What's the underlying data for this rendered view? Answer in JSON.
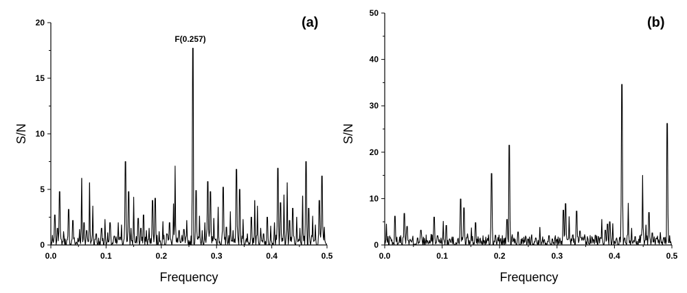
{
  "chart_data": [
    {
      "panel": "(a)",
      "type": "line",
      "xlabel": "Frequency",
      "ylabel": "S/N",
      "xlim": [
        0.0,
        0.5
      ],
      "ylim": [
        0,
        20
      ],
      "xticks": [
        "0.0",
        "0.1",
        "0.2",
        "0.3",
        "0.4",
        "0.5"
      ],
      "yticks": [
        "0",
        "5",
        "10",
        "15",
        "20"
      ],
      "annotations": [
        {
          "text": "F(0.257)",
          "x": 0.257,
          "y": 17.7
        }
      ],
      "peaks": [
        [
          0.007,
          2.7
        ],
        [
          0.012,
          1.5
        ],
        [
          0.016,
          4.8
        ],
        [
          0.023,
          1.2
        ],
        [
          0.032,
          3.2
        ],
        [
          0.04,
          2.2
        ],
        [
          0.052,
          1.4
        ],
        [
          0.056,
          6.0
        ],
        [
          0.06,
          2.0
        ],
        [
          0.065,
          1.3
        ],
        [
          0.07,
          5.6
        ],
        [
          0.076,
          3.5
        ],
        [
          0.082,
          1.0
        ],
        [
          0.092,
          1.5
        ],
        [
          0.098,
          2.3
        ],
        [
          0.103,
          1.1
        ],
        [
          0.107,
          2.0
        ],
        [
          0.115,
          0.8
        ],
        [
          0.122,
          2.0
        ],
        [
          0.128,
          1.8
        ],
        [
          0.135,
          7.5
        ],
        [
          0.141,
          4.8
        ],
        [
          0.145,
          1.5
        ],
        [
          0.15,
          4.3
        ],
        [
          0.158,
          2.4
        ],
        [
          0.163,
          1.5
        ],
        [
          0.168,
          2.7
        ],
        [
          0.173,
          1.3
        ],
        [
          0.178,
          1.5
        ],
        [
          0.184,
          4.0
        ],
        [
          0.189,
          4.2
        ],
        [
          0.196,
          1.2
        ],
        [
          0.203,
          2.1
        ],
        [
          0.21,
          1.0
        ],
        [
          0.215,
          2.0
        ],
        [
          0.222,
          3.7
        ],
        [
          0.225,
          7.1
        ],
        [
          0.232,
          1.3
        ],
        [
          0.241,
          1.4
        ],
        [
          0.246,
          2.2
        ],
        [
          0.257,
          17.7
        ],
        [
          0.263,
          4.9
        ],
        [
          0.269,
          2.6
        ],
        [
          0.274,
          1.3
        ],
        [
          0.279,
          2.0
        ],
        [
          0.284,
          5.7
        ],
        [
          0.289,
          4.8
        ],
        [
          0.295,
          2.4
        ],
        [
          0.303,
          3.4
        ],
        [
          0.312,
          5.2
        ],
        [
          0.318,
          1.6
        ],
        [
          0.325,
          3.0
        ],
        [
          0.33,
          1.3
        ],
        [
          0.336,
          6.8
        ],
        [
          0.342,
          5.0
        ],
        [
          0.348,
          2.3
        ],
        [
          0.356,
          1.0
        ],
        [
          0.363,
          2.5
        ],
        [
          0.369,
          4.0
        ],
        [
          0.374,
          3.5
        ],
        [
          0.38,
          1.5
        ],
        [
          0.385,
          1.0
        ],
        [
          0.392,
          2.5
        ],
        [
          0.398,
          1.7
        ],
        [
          0.405,
          2.0
        ],
        [
          0.411,
          6.9
        ],
        [
          0.416,
          3.8
        ],
        [
          0.422,
          4.5
        ],
        [
          0.428,
          5.6
        ],
        [
          0.432,
          2.2
        ],
        [
          0.438,
          3.3
        ],
        [
          0.445,
          2.5
        ],
        [
          0.451,
          1.5
        ],
        [
          0.456,
          4.4
        ],
        [
          0.462,
          7.5
        ],
        [
          0.467,
          3.3
        ],
        [
          0.474,
          2.6
        ],
        [
          0.479,
          1.8
        ],
        [
          0.486,
          4.0
        ],
        [
          0.491,
          6.2
        ],
        [
          0.495,
          1.6
        ]
      ]
    },
    {
      "panel": "(b)",
      "type": "line",
      "xlabel": "Frequency",
      "ylabel": "S/N",
      "xlim": [
        0.0,
        0.5
      ],
      "ylim": [
        0,
        50
      ],
      "xticks": [
        "0.0",
        "0.1",
        "0.2",
        "0.3",
        "0.4",
        "0.5"
      ],
      "yticks": [
        "0",
        "10",
        "20",
        "30",
        "40",
        "50"
      ],
      "peaks": [
        [
          0.003,
          4.5
        ],
        [
          0.01,
          1.5
        ],
        [
          0.018,
          6.2
        ],
        [
          0.028,
          2.0
        ],
        [
          0.034,
          6.8
        ],
        [
          0.039,
          4.0
        ],
        [
          0.048,
          1.2
        ],
        [
          0.057,
          1.5
        ],
        [
          0.063,
          3.2
        ],
        [
          0.072,
          1.3
        ],
        [
          0.081,
          2.3
        ],
        [
          0.086,
          6.0
        ],
        [
          0.092,
          2.0
        ],
        [
          0.098,
          1.5
        ],
        [
          0.102,
          5.1
        ],
        [
          0.107,
          4.2
        ],
        [
          0.113,
          1.3
        ],
        [
          0.119,
          1.0
        ],
        [
          0.127,
          1.2
        ],
        [
          0.132,
          9.9
        ],
        [
          0.138,
          8.0
        ],
        [
          0.144,
          2.4
        ],
        [
          0.151,
          3.7
        ],
        [
          0.158,
          4.8
        ],
        [
          0.166,
          1.3
        ],
        [
          0.173,
          1.0
        ],
        [
          0.186,
          15.4
        ],
        [
          0.193,
          2.1
        ],
        [
          0.202,
          1.4
        ],
        [
          0.213,
          5.5
        ],
        [
          0.217,
          21.5
        ],
        [
          0.225,
          1.5
        ],
        [
          0.232,
          2.8
        ],
        [
          0.24,
          1.0
        ],
        [
          0.249,
          1.3
        ],
        [
          0.256,
          2.2
        ],
        [
          0.263,
          1.5
        ],
        [
          0.27,
          3.8
        ],
        [
          0.278,
          1.2
        ],
        [
          0.286,
          2.0
        ],
        [
          0.292,
          1.3
        ],
        [
          0.299,
          1.0
        ],
        [
          0.305,
          1.5
        ],
        [
          0.311,
          7.5
        ],
        [
          0.315,
          8.9
        ],
        [
          0.321,
          6.1
        ],
        [
          0.328,
          2.2
        ],
        [
          0.334,
          7.3
        ],
        [
          0.34,
          3.0
        ],
        [
          0.347,
          1.2
        ],
        [
          0.354,
          1.3
        ],
        [
          0.361,
          1.6
        ],
        [
          0.367,
          2.1
        ],
        [
          0.373,
          1.5
        ],
        [
          0.378,
          5.5
        ],
        [
          0.384,
          3.2
        ],
        [
          0.388,
          4.5
        ],
        [
          0.392,
          5.0
        ],
        [
          0.397,
          4.6
        ],
        [
          0.403,
          1.3
        ],
        [
          0.413,
          34.6
        ],
        [
          0.418,
          1.5
        ],
        [
          0.424,
          9.0
        ],
        [
          0.43,
          3.6
        ],
        [
          0.436,
          1.8
        ],
        [
          0.444,
          2.0
        ],
        [
          0.449,
          15.0
        ],
        [
          0.455,
          4.3
        ],
        [
          0.46,
          7.0
        ],
        [
          0.466,
          2.6
        ],
        [
          0.473,
          1.5
        ],
        [
          0.48,
          2.7
        ],
        [
          0.486,
          1.6
        ],
        [
          0.492,
          26.2
        ],
        [
          0.496,
          2.0
        ]
      ]
    }
  ]
}
